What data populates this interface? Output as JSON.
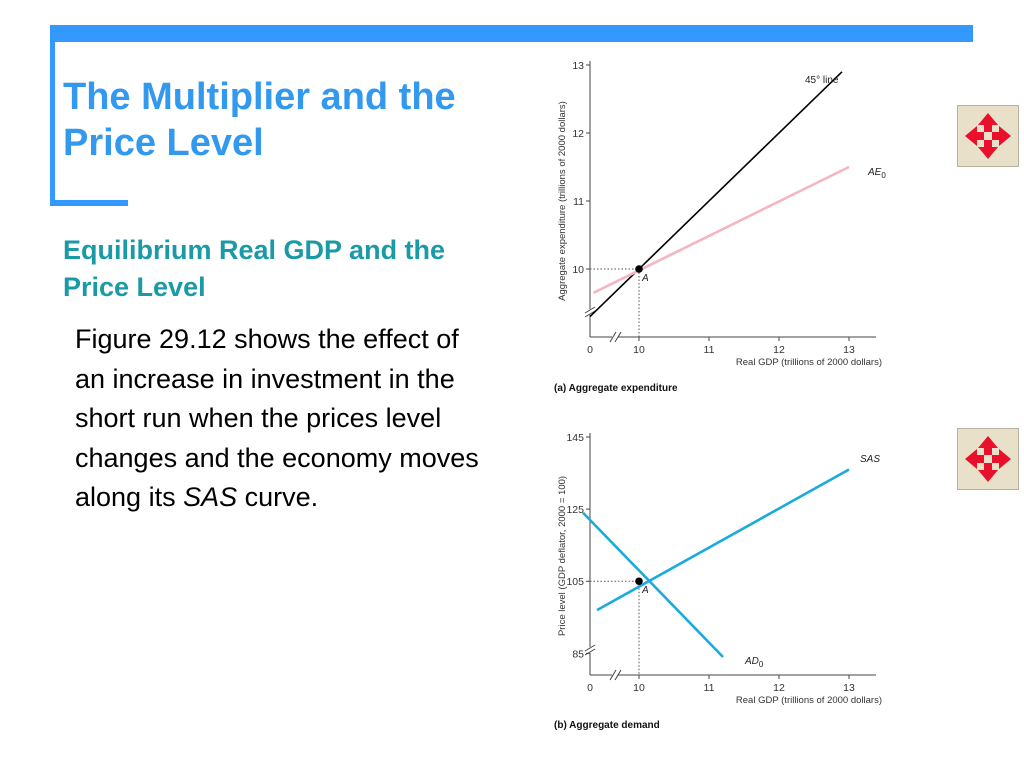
{
  "slide": {
    "title": "The Multiplier and the Price Level",
    "subtitle": "Equilibrium Real GDP and the Price Level",
    "body_before": "Figure 29.12 shows the effect of an increase in investment in the short run when the prices level changes and the economy moves along its ",
    "body_italic": "SAS",
    "body_after": " curve.",
    "accent_color": "#3399ff",
    "title_color": "#3399ee",
    "subtitle_color": "#1a9aa6"
  },
  "nav": {
    "icon": "four-way-arrows-icon",
    "icon_color": "#e8102a"
  },
  "chart_data": [
    {
      "type": "line",
      "caption": "(a) Aggregate expenditure",
      "xlabel": "Real GDP (trillions of 2000 dollars)",
      "ylabel": "Aggregate expenditure (trillions of 2000 dollars)",
      "x_origin_label": "0",
      "xlim": [
        9.3,
        13.3
      ],
      "ylim": [
        9.0,
        13.0
      ],
      "xticks": [
        10,
        11,
        12,
        13
      ],
      "yticks": [
        10,
        11,
        12,
        13
      ],
      "axis_break": true,
      "series": [
        {
          "name": "45° line",
          "color": "#000000",
          "x": [
            9.3,
            12.9
          ],
          "y": [
            9.3,
            12.9
          ]
        },
        {
          "name": "AE",
          "name_sub": "0",
          "color": "#f4b6c2",
          "x": [
            9.35,
            13.0
          ],
          "y": [
            9.65,
            11.5
          ]
        }
      ],
      "points": [
        {
          "label": "A",
          "x": 10,
          "y": 10
        }
      ]
    },
    {
      "type": "line",
      "caption": "(b) Aggregate demand",
      "xlabel": "Real GDP (trillions of 2000 dollars)",
      "ylabel": "Price level (GDP deflator, 2000 = 100)",
      "x_origin_label": "0",
      "xlim": [
        9.3,
        13.3
      ],
      "ylim": [
        79,
        145
      ],
      "xticks": [
        10,
        11,
        12,
        13
      ],
      "yticks": [
        85,
        105,
        125,
        145
      ],
      "axis_break": true,
      "series": [
        {
          "name": "SAS",
          "color": "#1aaadd",
          "x": [
            9.4,
            13.0
          ],
          "y": [
            97,
            136
          ]
        },
        {
          "name": "AD",
          "name_sub": "0",
          "color": "#1aaadd",
          "x": [
            9.2,
            11.2
          ],
          "y": [
            124,
            84
          ]
        }
      ],
      "points": [
        {
          "label": "A",
          "x": 10,
          "y": 105
        }
      ]
    }
  ]
}
